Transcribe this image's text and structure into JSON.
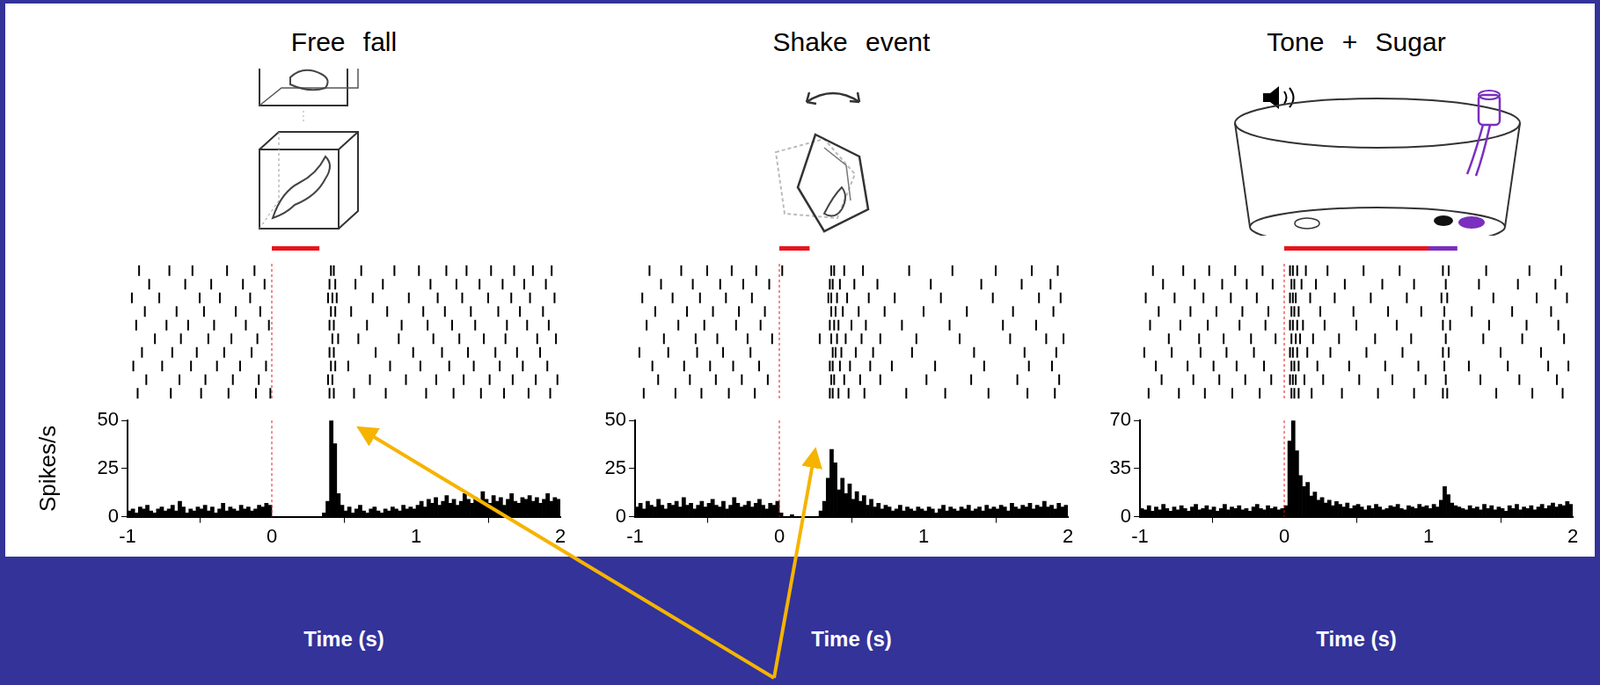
{
  "chart_data": [
    {
      "type": "histogram",
      "title": "Free fall",
      "x_label": "Time (s)",
      "y_label": "Spikes/s",
      "color": "#000000",
      "xlim": [
        -1,
        2
      ],
      "xticks": [
        -1,
        0,
        1,
        2
      ],
      "ylim": [
        0,
        50
      ],
      "yticks": [
        0,
        25,
        50
      ],
      "grid": false,
      "bins": [
        -1,
        -0.975,
        -0.95,
        -0.925,
        -0.9,
        -0.875,
        -0.85,
        -0.825,
        -0.8,
        -0.775,
        -0.75,
        -0.725,
        -0.7,
        -0.675,
        -0.65,
        -0.625,
        -0.6,
        -0.575,
        -0.55,
        -0.525,
        -0.5,
        -0.475,
        -0.45,
        -0.425,
        -0.4,
        -0.375,
        -0.35,
        -0.325,
        -0.3,
        -0.275,
        -0.25,
        -0.225,
        -0.2,
        -0.175,
        -0.15,
        -0.125,
        -0.1,
        -0.075,
        -0.05,
        -0.025,
        0,
        0.025,
        0.05,
        0.075,
        0.1,
        0.125,
        0.15,
        0.175,
        0.2,
        0.225,
        0.25,
        0.275,
        0.3,
        0.325,
        0.35,
        0.375,
        0.4,
        0.425,
        0.45,
        0.475,
        0.5,
        0.525,
        0.55,
        0.575,
        0.6,
        0.625,
        0.65,
        0.675,
        0.7,
        0.725,
        0.75,
        0.775,
        0.8,
        0.825,
        0.85,
        0.875,
        0.9,
        0.925,
        0.95,
        0.975,
        1,
        1.025,
        1.05,
        1.075,
        1.1,
        1.125,
        1.15,
        1.175,
        1.2,
        1.225,
        1.25,
        1.275,
        1.3,
        1.325,
        1.35,
        1.375,
        1.4,
        1.425,
        1.45,
        1.475,
        1.5,
        1.525,
        1.55,
        1.575,
        1.6,
        1.625,
        1.65,
        1.675,
        1.7,
        1.725,
        1.75,
        1.775,
        1.8,
        1.825,
        1.85,
        1.875,
        1.9,
        1.925,
        1.95,
        1.975,
        2
      ],
      "values": [
        3,
        4,
        2,
        5,
        4,
        6,
        3,
        2,
        4,
        5,
        3,
        4,
        6,
        3,
        8,
        5,
        2,
        4,
        3,
        5,
        4,
        6,
        3,
        5,
        2,
        4,
        7,
        3,
        5,
        4,
        3,
        6,
        4,
        5,
        3,
        4,
        6,
        5,
        7,
        6,
        0,
        0,
        0,
        0,
        0,
        0,
        0,
        0,
        0,
        0,
        0,
        0,
        0,
        0,
        2,
        8,
        50,
        38,
        12,
        6,
        3,
        5,
        2,
        4,
        6,
        3,
        2,
        4,
        5,
        3,
        2,
        4,
        3,
        5,
        4,
        3,
        6,
        4,
        5,
        4,
        6,
        8,
        5,
        9,
        7,
        10,
        6,
        8,
        11,
        7,
        9,
        6,
        8,
        12,
        9,
        7,
        10,
        8,
        13,
        9,
        7,
        11,
        8,
        10,
        6,
        9,
        12,
        8,
        7,
        10,
        9,
        11,
        8,
        10,
        7,
        9,
        12,
        8,
        10,
        9
      ],
      "onset": 0,
      "events": [
        {
          "start": 0,
          "end": 0.33,
          "color": "#e8141c"
        }
      ],
      "raster": [
        [
          -0.92,
          -0.71,
          -0.55,
          -0.31,
          -0.12,
          0.41,
          0.43,
          0.62,
          0.85,
          1.02,
          1.21,
          1.35,
          1.52,
          1.68,
          1.81,
          1.94
        ],
        [
          -0.85,
          -0.6,
          -0.42,
          -0.2,
          -0.05,
          0.4,
          0.44,
          0.58,
          0.77,
          1.1,
          1.28,
          1.44,
          1.6,
          1.75,
          1.9
        ],
        [
          -0.97,
          -0.78,
          -0.5,
          -0.36,
          -0.15,
          0.39,
          0.42,
          0.45,
          0.7,
          0.95,
          1.15,
          1.32,
          1.5,
          1.66,
          1.79,
          1.96
        ],
        [
          -0.88,
          -0.66,
          -0.47,
          -0.25,
          -0.08,
          0.41,
          0.44,
          0.55,
          0.8,
          1.05,
          1.2,
          1.38,
          1.57,
          1.72,
          1.88
        ],
        [
          -0.94,
          -0.73,
          -0.58,
          -0.4,
          -0.18,
          -0.02,
          0.4,
          0.43,
          0.66,
          0.9,
          1.08,
          1.25,
          1.41,
          1.63,
          1.77,
          1.92
        ],
        [
          -0.81,
          -0.63,
          -0.44,
          -0.28,
          -0.1,
          0.42,
          0.46,
          0.6,
          0.88,
          1.12,
          1.3,
          1.47,
          1.62,
          1.84,
          1.97
        ],
        [
          -0.9,
          -0.69,
          -0.52,
          -0.33,
          -0.14,
          0.4,
          0.43,
          0.72,
          0.98,
          1.18,
          1.36,
          1.55,
          1.7,
          1.86
        ],
        [
          -0.96,
          -0.76,
          -0.56,
          -0.38,
          -0.22,
          -0.04,
          0.41,
          0.44,
          0.53,
          0.82,
          1.03,
          1.23,
          1.4,
          1.58,
          1.74,
          1.91
        ],
        [
          -0.87,
          -0.64,
          -0.46,
          -0.27,
          -0.09,
          0.39,
          0.42,
          0.68,
          0.93,
          1.14,
          1.33,
          1.51,
          1.67,
          1.83,
          1.98
        ],
        [
          -0.93,
          -0.7,
          -0.49,
          -0.3,
          -0.11,
          -0.01,
          0.4,
          0.43,
          0.57,
          0.79,
          1.07,
          1.26,
          1.45,
          1.61,
          1.78,
          1.93
        ]
      ]
    },
    {
      "type": "histogram",
      "title": "Shake event",
      "x_label": "Time (s)",
      "color": "#000000",
      "xlim": [
        -1,
        2
      ],
      "xticks": [
        -1,
        0,
        1,
        2
      ],
      "ylim": [
        0,
        50
      ],
      "yticks": [
        0,
        25,
        50
      ],
      "grid": false,
      "bins": [
        -1,
        -0.975,
        -0.95,
        -0.925,
        -0.9,
        -0.875,
        -0.85,
        -0.825,
        -0.8,
        -0.775,
        -0.75,
        -0.725,
        -0.7,
        -0.675,
        -0.65,
        -0.625,
        -0.6,
        -0.575,
        -0.55,
        -0.525,
        -0.5,
        -0.475,
        -0.45,
        -0.425,
        -0.4,
        -0.375,
        -0.35,
        -0.325,
        -0.3,
        -0.275,
        -0.25,
        -0.225,
        -0.2,
        -0.175,
        -0.15,
        -0.125,
        -0.1,
        -0.075,
        -0.05,
        -0.025,
        0,
        0.025,
        0.05,
        0.075,
        0.1,
        0.125,
        0.15,
        0.175,
        0.2,
        0.225,
        0.25,
        0.275,
        0.3,
        0.325,
        0.35,
        0.375,
        0.4,
        0.425,
        0.45,
        0.475,
        0.5,
        0.525,
        0.55,
        0.575,
        0.6,
        0.625,
        0.65,
        0.675,
        0.7,
        0.725,
        0.75,
        0.775,
        0.8,
        0.825,
        0.85,
        0.875,
        0.9,
        0.925,
        0.95,
        0.975,
        1,
        1.025,
        1.05,
        1.075,
        1.1,
        1.125,
        1.15,
        1.175,
        1.2,
        1.225,
        1.25,
        1.275,
        1.3,
        1.325,
        1.35,
        1.375,
        1.4,
        1.425,
        1.45,
        1.475,
        1.5,
        1.525,
        1.55,
        1.575,
        1.6,
        1.625,
        1.65,
        1.675,
        1.7,
        1.725,
        1.75,
        1.775,
        1.8,
        1.825,
        1.85,
        1.875,
        1.9,
        1.925,
        1.95,
        1.975,
        2
      ],
      "values": [
        5,
        7,
        4,
        8,
        6,
        5,
        9,
        6,
        4,
        7,
        6,
        8,
        5,
        10,
        6,
        7,
        4,
        6,
        8,
        5,
        7,
        9,
        6,
        5,
        8,
        4,
        6,
        10,
        7,
        5,
        6,
        8,
        5,
        7,
        9,
        6,
        4,
        7,
        6,
        8,
        2,
        0,
        0,
        1,
        0,
        0,
        0,
        0,
        0,
        0,
        0,
        3,
        8,
        20,
        35,
        28,
        14,
        20,
        12,
        17,
        9,
        13,
        8,
        11,
        6,
        9,
        5,
        7,
        4,
        6,
        5,
        3,
        4,
        6,
        3,
        5,
        4,
        3,
        5,
        4,
        3,
        5,
        4,
        2,
        4,
        6,
        3,
        5,
        4,
        3,
        5,
        4,
        6,
        3,
        4,
        5,
        3,
        6,
        4,
        5,
        4,
        6,
        5,
        3,
        7,
        5,
        4,
        6,
        5,
        7,
        4,
        6,
        5,
        8,
        5,
        6,
        4,
        7,
        5,
        6
      ],
      "onset": 0,
      "events": [
        {
          "start": 0,
          "end": 0.21,
          "color": "#e8141c"
        }
      ],
      "raster": [
        [
          -0.9,
          -0.68,
          -0.5,
          -0.33,
          -0.16,
          0.02,
          0.36,
          0.38,
          0.45,
          0.58,
          0.9,
          1.2,
          1.5,
          1.75,
          1.93
        ],
        [
          -0.82,
          -0.6,
          -0.41,
          -0.25,
          -0.07,
          0.35,
          0.37,
          0.42,
          0.52,
          0.68,
          1.05,
          1.4,
          1.68,
          1.88
        ],
        [
          -0.95,
          -0.74,
          -0.55,
          -0.37,
          -0.19,
          0.34,
          0.36,
          0.4,
          0.47,
          0.62,
          0.8,
          1.12,
          1.48,
          1.8,
          1.95
        ],
        [
          -0.86,
          -0.64,
          -0.46,
          -0.28,
          -0.1,
          0.36,
          0.39,
          0.44,
          0.55,
          0.73,
          1.0,
          1.3,
          1.62,
          1.9
        ],
        [
          -0.92,
          -0.7,
          -0.52,
          -0.3,
          -0.13,
          0.35,
          0.38,
          0.41,
          0.5,
          0.6,
          0.85,
          1.18,
          1.55,
          1.78
        ],
        [
          -0.8,
          -0.58,
          -0.43,
          -0.22,
          -0.05,
          0.28,
          0.36,
          0.4,
          0.46,
          0.57,
          0.7,
          0.95,
          1.25,
          1.6,
          1.85,
          1.97
        ],
        [
          -0.97,
          -0.77,
          -0.57,
          -0.39,
          -0.2,
          0.37,
          0.39,
          0.43,
          0.53,
          0.65,
          0.92,
          1.35,
          1.7,
          1.92
        ],
        [
          -0.88,
          -0.66,
          -0.48,
          -0.32,
          -0.14,
          0.35,
          0.37,
          0.42,
          0.49,
          0.63,
          0.78,
          1.08,
          1.42,
          1.73,
          1.89
        ],
        [
          -0.84,
          -0.62,
          -0.44,
          -0.26,
          -0.08,
          0.36,
          0.38,
          0.45,
          0.56,
          0.7,
          1.02,
          1.33,
          1.65,
          1.94
        ],
        [
          -0.94,
          -0.72,
          -0.54,
          -0.35,
          -0.17,
          0.35,
          0.37,
          0.41,
          0.48,
          0.59,
          0.88,
          1.15,
          1.45,
          1.72,
          1.91
        ]
      ]
    },
    {
      "type": "histogram",
      "title": "Tone + Sugar",
      "x_label": "Time (s)",
      "color": "#000000",
      "xlim": [
        -1,
        2
      ],
      "xticks": [
        -1,
        0,
        1,
        2
      ],
      "ylim": [
        0,
        70
      ],
      "yticks": [
        0,
        35,
        70
      ],
      "grid": false,
      "bins": [
        -1,
        -0.975,
        -0.95,
        -0.925,
        -0.9,
        -0.875,
        -0.85,
        -0.825,
        -0.8,
        -0.775,
        -0.75,
        -0.725,
        -0.7,
        -0.675,
        -0.65,
        -0.625,
        -0.6,
        -0.575,
        -0.55,
        -0.525,
        -0.5,
        -0.475,
        -0.45,
        -0.425,
        -0.4,
        -0.375,
        -0.35,
        -0.325,
        -0.3,
        -0.275,
        -0.25,
        -0.225,
        -0.2,
        -0.175,
        -0.15,
        -0.125,
        -0.1,
        -0.075,
        -0.05,
        -0.025,
        0,
        0.025,
        0.05,
        0.075,
        0.1,
        0.125,
        0.15,
        0.175,
        0.2,
        0.225,
        0.25,
        0.275,
        0.3,
        0.325,
        0.35,
        0.375,
        0.4,
        0.425,
        0.45,
        0.475,
        0.5,
        0.525,
        0.55,
        0.575,
        0.6,
        0.625,
        0.65,
        0.675,
        0.7,
        0.725,
        0.75,
        0.775,
        0.8,
        0.825,
        0.85,
        0.875,
        0.9,
        0.925,
        0.95,
        0.975,
        1,
        1.025,
        1.05,
        1.075,
        1.1,
        1.125,
        1.15,
        1.175,
        1.2,
        1.225,
        1.25,
        1.275,
        1.3,
        1.325,
        1.35,
        1.375,
        1.4,
        1.425,
        1.45,
        1.475,
        1.5,
        1.525,
        1.55,
        1.575,
        1.6,
        1.625,
        1.65,
        1.675,
        1.7,
        1.725,
        1.75,
        1.775,
        1.8,
        1.825,
        1.85,
        1.875,
        1.9,
        1.925,
        1.95,
        1.975,
        2
      ],
      "values": [
        6,
        5,
        8,
        4,
        7,
        5,
        9,
        6,
        4,
        7,
        5,
        8,
        6,
        4,
        7,
        9,
        5,
        6,
        8,
        5,
        7,
        4,
        6,
        9,
        5,
        7,
        6,
        8,
        5,
        6,
        4,
        7,
        9,
        6,
        5,
        8,
        6,
        7,
        5,
        6,
        8,
        55,
        70,
        48,
        30,
        22,
        25,
        15,
        18,
        12,
        14,
        10,
        12,
        8,
        11,
        9,
        7,
        10,
        6,
        8,
        9,
        7,
        5,
        8,
        6,
        9,
        7,
        5,
        6,
        8,
        7,
        9,
        6,
        5,
        8,
        7,
        6,
        9,
        7,
        8,
        6,
        9,
        7,
        12,
        22,
        16,
        10,
        8,
        7,
        6,
        5,
        8,
        6,
        7,
        5,
        9,
        6,
        8,
        5,
        7,
        6,
        4,
        8,
        6,
        9,
        5,
        7,
        6,
        8,
        5,
        7,
        9,
        6,
        8,
        10,
        7,
        9,
        8,
        11,
        9
      ],
      "onset": 0,
      "events": [
        {
          "start": 0,
          "end": 1.0,
          "color": "#e8141c"
        },
        {
          "start": 1.0,
          "end": 1.2,
          "color": "#7b2fbe"
        }
      ],
      "raster": [
        [
          -0.91,
          -0.7,
          -0.52,
          -0.34,
          -0.15,
          0.04,
          0.06,
          0.09,
          0.15,
          0.3,
          0.55,
          0.8,
          1.1,
          1.14,
          1.4,
          1.7,
          1.92
        ],
        [
          -0.84,
          -0.62,
          -0.43,
          -0.26,
          -0.08,
          0.05,
          0.07,
          0.12,
          0.22,
          0.42,
          0.68,
          0.9,
          1.12,
          1.35,
          1.62,
          1.88
        ],
        [
          -0.96,
          -0.76,
          -0.56,
          -0.37,
          -0.19,
          0.04,
          0.06,
          0.08,
          0.18,
          0.35,
          0.6,
          0.85,
          1.09,
          1.13,
          1.45,
          1.75,
          1.96
        ],
        [
          -0.87,
          -0.65,
          -0.47,
          -0.29,
          -0.11,
          0.05,
          0.07,
          0.1,
          0.25,
          0.48,
          0.72,
          0.95,
          1.11,
          1.3,
          1.58,
          1.85
        ],
        [
          -0.93,
          -0.72,
          -0.53,
          -0.31,
          -0.13,
          0.04,
          0.06,
          0.09,
          0.13,
          0.28,
          0.5,
          0.78,
          1.1,
          1.15,
          1.42,
          1.68,
          1.9
        ],
        [
          -0.8,
          -0.59,
          -0.42,
          -0.23,
          -0.06,
          0.05,
          0.08,
          0.11,
          0.2,
          0.38,
          0.63,
          0.88,
          1.12,
          1.38,
          1.65,
          1.94
        ],
        [
          -0.97,
          -0.78,
          -0.58,
          -0.4,
          -0.21,
          0.04,
          0.06,
          0.09,
          0.16,
          0.32,
          0.57,
          0.82,
          1.1,
          1.14,
          1.5,
          1.78
        ],
        [
          -0.89,
          -0.67,
          -0.49,
          -0.33,
          -0.14,
          0.05,
          0.07,
          0.1,
          0.23,
          0.45,
          0.7,
          0.93,
          1.11,
          1.28,
          1.55,
          1.83,
          1.97
        ],
        [
          -0.85,
          -0.63,
          -0.45,
          -0.27,
          -0.09,
          0.04,
          0.06,
          0.08,
          0.14,
          0.27,
          0.52,
          0.75,
          0.98,
          1.12,
          1.36,
          1.63,
          1.89
        ],
        [
          -0.94,
          -0.73,
          -0.55,
          -0.36,
          -0.17,
          0.05,
          0.07,
          0.1,
          0.19,
          0.4,
          0.65,
          0.9,
          1.1,
          1.13,
          1.47,
          1.72,
          1.93
        ]
      ]
    }
  ]
}
